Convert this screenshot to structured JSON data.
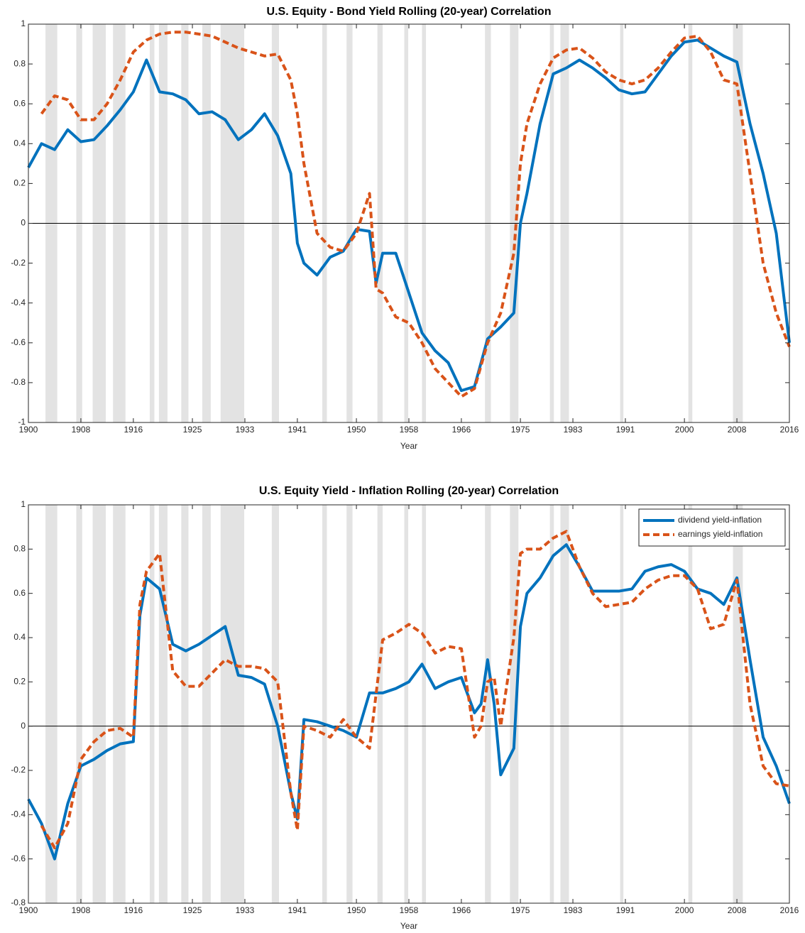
{
  "chart_data": [
    {
      "type": "line",
      "title": "U.S. Equity - Bond Yield Rolling (20-year) Correlation",
      "x_label": "Year",
      "xlim": [
        1900,
        2016
      ],
      "xticks": [
        1900,
        1908,
        1916,
        1925,
        1933,
        1941,
        1950,
        1958,
        1966,
        1975,
        1983,
        1991,
        2000,
        2008,
        2016
      ],
      "ylim": [
        -1,
        1
      ],
      "yticks": [
        -1,
        -0.8,
        -0.6,
        -0.4,
        -0.2,
        0,
        0.2,
        0.4,
        0.6,
        0.8,
        1
      ],
      "shade_color": "#e3e3e3",
      "shaded_regions": [
        [
          1902.6,
          1904.4
        ],
        [
          1907.3,
          1908.2
        ],
        [
          1909.8,
          1911.8
        ],
        [
          1912.9,
          1914.8
        ],
        [
          1918.5,
          1919.2
        ],
        [
          1919.9,
          1921.2
        ],
        [
          1923.3,
          1924.4
        ],
        [
          1926.5,
          1927.8
        ],
        [
          1929.3,
          1932.9
        ],
        [
          1937.1,
          1938.2
        ],
        [
          1944.8,
          1945.5
        ],
        [
          1948.5,
          1949.4
        ],
        [
          1953.2,
          1954.0
        ],
        [
          1957.3,
          1957.9
        ],
        [
          1960.0,
          1960.6
        ],
        [
          1969.6,
          1970.5
        ],
        [
          1973.4,
          1974.7
        ],
        [
          1979.5,
          1980.1
        ],
        [
          1981.1,
          1982.4
        ],
        [
          1990.2,
          1990.7
        ],
        [
          2000.6,
          2001.2
        ],
        [
          2007.4,
          2008.9
        ]
      ],
      "x": [
        1900,
        1902,
        1904,
        1906,
        1908,
        1910,
        1912,
        1914,
        1916,
        1918,
        1920,
        1922,
        1924,
        1926,
        1928,
        1930,
        1932,
        1934,
        1936,
        1938,
        1940,
        1941,
        1942,
        1944,
        1946,
        1948,
        1950,
        1952,
        1953,
        1954,
        1956,
        1958,
        1960,
        1962,
        1964,
        1966,
        1968,
        1970,
        1972,
        1974,
        1975,
        1976,
        1978,
        1980,
        1982,
        1984,
        1986,
        1988,
        1990,
        1992,
        1994,
        1996,
        1998,
        2000,
        2002,
        2004,
        2006,
        2008,
        2010,
        2012,
        2014,
        2016
      ],
      "series": [
        {
          "color": "#0072bd",
          "linestyle": "solid",
          "values": [
            0.28,
            0.4,
            0.37,
            0.47,
            0.41,
            0.42,
            0.49,
            0.57,
            0.66,
            0.82,
            0.66,
            0.65,
            0.62,
            0.55,
            0.56,
            0.52,
            0.42,
            0.47,
            0.55,
            0.44,
            0.25,
            -0.1,
            -0.2,
            -0.26,
            -0.17,
            -0.14,
            -0.03,
            -0.04,
            -0.3,
            -0.15,
            -0.15,
            -0.35,
            -0.55,
            -0.64,
            -0.7,
            -0.84,
            -0.82,
            -0.58,
            -0.52,
            -0.45,
            0.0,
            0.15,
            0.5,
            0.75,
            0.78,
            0.82,
            0.78,
            0.73,
            0.67,
            0.65,
            0.66,
            0.75,
            0.84,
            0.91,
            0.92,
            0.88,
            0.84,
            0.81,
            0.5,
            0.25,
            -0.05,
            -0.6
          ]
        },
        {
          "color": "#d95319",
          "linestyle": "dashed",
          "values": [
            null,
            0.55,
            0.64,
            0.62,
            0.52,
            0.52,
            0.6,
            0.72,
            0.86,
            0.92,
            0.95,
            0.96,
            0.96,
            0.95,
            0.94,
            0.91,
            0.88,
            0.86,
            0.84,
            0.85,
            0.72,
            0.55,
            0.3,
            -0.05,
            -0.12,
            -0.14,
            -0.05,
            0.15,
            -0.33,
            -0.35,
            -0.47,
            -0.5,
            -0.6,
            -0.73,
            -0.8,
            -0.87,
            -0.83,
            -0.6,
            -0.45,
            -0.15,
            0.3,
            0.5,
            0.7,
            0.83,
            0.87,
            0.88,
            0.83,
            0.76,
            0.72,
            0.7,
            0.72,
            0.78,
            0.86,
            0.93,
            0.94,
            0.86,
            0.72,
            0.7,
            0.25,
            -0.2,
            -0.45,
            -0.62
          ]
        }
      ]
    },
    {
      "type": "line",
      "title": "U.S. Equity Yield - Inflation Rolling (20-year) Correlation",
      "x_label": "Year",
      "xlim": [
        1900,
        2016
      ],
      "xticks": [
        1900,
        1908,
        1916,
        1925,
        1933,
        1941,
        1950,
        1958,
        1966,
        1975,
        1983,
        1991,
        2000,
        2008,
        2016
      ],
      "ylim": [
        -0.8,
        1
      ],
      "yticks": [
        -0.8,
        -0.6,
        -0.4,
        -0.2,
        0,
        0.2,
        0.4,
        0.6,
        0.8,
        1
      ],
      "legend": "upper right",
      "shade_color": "#e3e3e3",
      "shaded_regions": [
        [
          1902.6,
          1904.4
        ],
        [
          1907.3,
          1908.2
        ],
        [
          1909.8,
          1911.8
        ],
        [
          1912.9,
          1914.8
        ],
        [
          1918.5,
          1919.2
        ],
        [
          1919.9,
          1921.2
        ],
        [
          1923.3,
          1924.4
        ],
        [
          1926.5,
          1927.8
        ],
        [
          1929.3,
          1932.9
        ],
        [
          1937.1,
          1938.2
        ],
        [
          1944.8,
          1945.5
        ],
        [
          1948.5,
          1949.4
        ],
        [
          1953.2,
          1954.0
        ],
        [
          1957.3,
          1957.9
        ],
        [
          1960.0,
          1960.6
        ],
        [
          1969.6,
          1970.5
        ],
        [
          1973.4,
          1974.7
        ],
        [
          1979.5,
          1980.1
        ],
        [
          1981.1,
          1982.4
        ],
        [
          1990.2,
          1990.7
        ],
        [
          2000.6,
          2001.2
        ],
        [
          2007.4,
          2008.9
        ]
      ],
      "x": [
        1900,
        1902,
        1904,
        1906,
        1908,
        1910,
        1912,
        1914,
        1916,
        1917,
        1918,
        1920,
        1922,
        1924,
        1926,
        1928,
        1930,
        1932,
        1934,
        1936,
        1938,
        1940,
        1941,
        1942,
        1944,
        1946,
        1948,
        1950,
        1952,
        1954,
        1956,
        1958,
        1960,
        1962,
        1964,
        1966,
        1968,
        1969,
        1970,
        1971,
        1972,
        1974,
        1975,
        1976,
        1978,
        1980,
        1982,
        1984,
        1986,
        1988,
        1990,
        1992,
        1994,
        1996,
        1998,
        2000,
        2002,
        2004,
        2006,
        2008,
        2010,
        2012,
        2014,
        2016
      ],
      "series": [
        {
          "name": "dividend yield-inflation",
          "color": "#0072bd",
          "linestyle": "solid",
          "values": [
            -0.33,
            -0.44,
            -0.6,
            -0.35,
            -0.18,
            -0.15,
            -0.11,
            -0.08,
            -0.07,
            0.5,
            0.67,
            0.62,
            0.37,
            0.34,
            0.37,
            0.41,
            0.45,
            0.23,
            0.22,
            0.19,
            0.0,
            -0.3,
            -0.42,
            0.03,
            0.02,
            0.0,
            -0.02,
            -0.05,
            0.15,
            0.15,
            0.17,
            0.2,
            0.28,
            0.17,
            0.2,
            0.22,
            0.06,
            0.1,
            0.3,
            0.1,
            -0.22,
            -0.1,
            0.45,
            0.6,
            0.67,
            0.77,
            0.82,
            0.72,
            0.61,
            0.61,
            0.61,
            0.62,
            0.7,
            0.72,
            0.73,
            0.7,
            0.62,
            0.6,
            0.55,
            0.67,
            0.3,
            -0.05,
            -0.18,
            -0.35
          ]
        },
        {
          "name": "earnings yield-inflation",
          "color": "#d95319",
          "linestyle": "dashed",
          "values": [
            null,
            -0.45,
            -0.55,
            -0.44,
            -0.15,
            -0.07,
            -0.02,
            -0.01,
            -0.05,
            0.55,
            0.7,
            0.78,
            0.25,
            0.18,
            0.18,
            0.24,
            0.3,
            0.27,
            0.27,
            0.26,
            0.2,
            -0.3,
            -0.47,
            0.0,
            -0.02,
            -0.05,
            0.03,
            -0.05,
            -0.1,
            0.39,
            0.42,
            0.46,
            0.42,
            0.33,
            0.36,
            0.35,
            -0.05,
            0.0,
            0.2,
            0.22,
            0.0,
            0.4,
            0.78,
            0.8,
            0.8,
            0.85,
            0.88,
            0.72,
            0.6,
            0.54,
            0.55,
            0.56,
            0.62,
            0.66,
            0.68,
            0.68,
            0.62,
            0.44,
            0.46,
            0.66,
            0.1,
            -0.18,
            -0.26,
            -0.27
          ]
        }
      ]
    }
  ]
}
